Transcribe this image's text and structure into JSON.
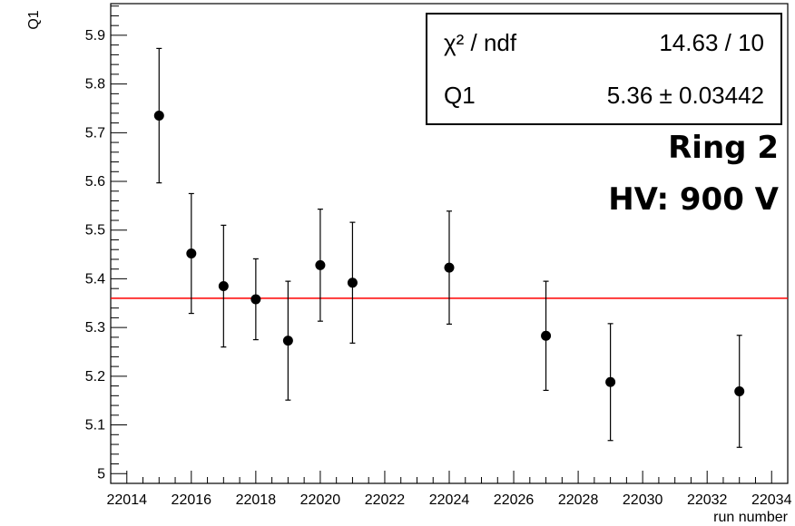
{
  "chart_data": {
    "type": "scatter",
    "xlabel": "run number",
    "ylabel": "Q1",
    "xlim": [
      22013.5,
      22034.5
    ],
    "ylim": [
      4.98,
      5.965
    ],
    "x_ticks": [
      22014,
      22016,
      22018,
      22020,
      22022,
      22024,
      22026,
      22028,
      22030,
      22032,
      22034
    ],
    "y_ticks": [
      5,
      5.1,
      5.2,
      5.3,
      5.4,
      5.5,
      5.6,
      5.7,
      5.8,
      5.9
    ],
    "points": [
      {
        "x": 22015,
        "y": 5.735,
        "err": 0.138
      },
      {
        "x": 22016,
        "y": 5.452,
        "err": 0.123
      },
      {
        "x": 22017,
        "y": 5.385,
        "err": 0.125
      },
      {
        "x": 22018,
        "y": 5.358,
        "err": 0.083
      },
      {
        "x": 22019,
        "y": 5.273,
        "err": 0.122
      },
      {
        "x": 22020,
        "y": 5.428,
        "err": 0.115
      },
      {
        "x": 22021,
        "y": 5.392,
        "err": 0.124
      },
      {
        "x": 22024,
        "y": 5.423,
        "err": 0.116
      },
      {
        "x": 22027,
        "y": 5.283,
        "err": 0.112
      },
      {
        "x": 22029,
        "y": 5.188,
        "err": 0.12
      },
      {
        "x": 22033,
        "y": 5.169,
        "err": 0.115
      }
    ],
    "fit": {
      "y": 5.36,
      "color": "#ff0000"
    },
    "grid": false,
    "stats": {
      "chi_label": "χ² / ndf",
      "chi_value": "14.63 / 10",
      "q1_label": "Q1",
      "q1_value": "5.36 ± 0.03442"
    },
    "annotations": {
      "ring": "Ring 2",
      "hv": "HV: 900 V"
    }
  }
}
